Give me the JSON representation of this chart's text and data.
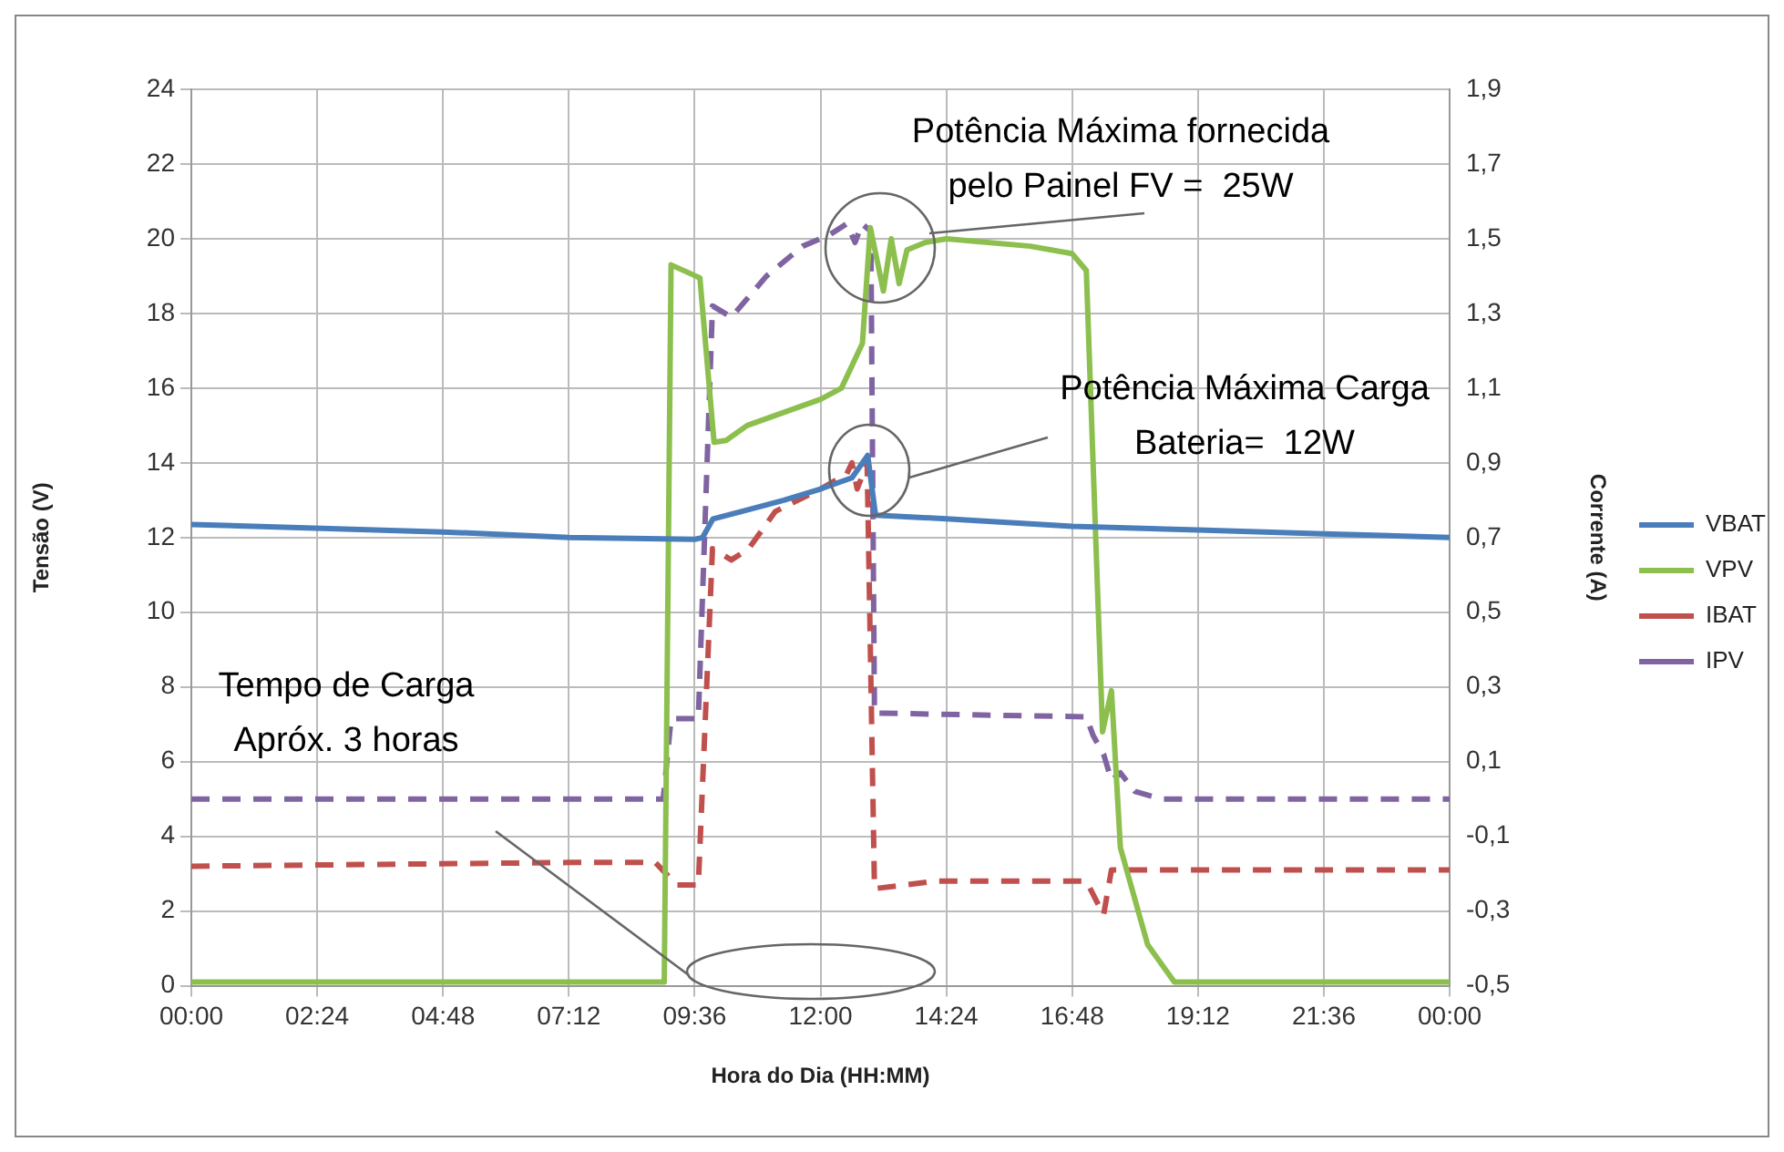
{
  "chart_data": {
    "type": "line",
    "xlabel": "Hora do Dia (HH:MM)",
    "ylabel": "Tensão (V)",
    "y2label": "Corrente (A)",
    "xlim": [
      0,
      24
    ],
    "xticks": [
      {
        "value": 0,
        "label": "00:00"
      },
      {
        "value": 2.4,
        "label": "02:24"
      },
      {
        "value": 4.8,
        "label": "04:48"
      },
      {
        "value": 7.2,
        "label": "07:12"
      },
      {
        "value": 9.6,
        "label": "09:36"
      },
      {
        "value": 12,
        "label": "12:00"
      },
      {
        "value": 14.4,
        "label": "14:24"
      },
      {
        "value": 16.8,
        "label": "16:48"
      },
      {
        "value": 19.2,
        "label": "19:12"
      },
      {
        "value": 21.6,
        "label": "21:36"
      },
      {
        "value": 24,
        "label": "00:00"
      }
    ],
    "ylim": [
      0,
      24
    ],
    "yticks": [
      0,
      2,
      4,
      6,
      8,
      10,
      12,
      14,
      16,
      18,
      20,
      22,
      24
    ],
    "y2lim": [
      -0.5,
      1.9
    ],
    "y2ticks": [
      {
        "value": -0.5,
        "label": "-0,5"
      },
      {
        "value": -0.3,
        "label": "-0,3"
      },
      {
        "value": -0.1,
        "label": "-0,1"
      },
      {
        "value": 0.1,
        "label": "0,1"
      },
      {
        "value": 0.3,
        "label": "0,3"
      },
      {
        "value": 0.5,
        "label": "0,5"
      },
      {
        "value": 0.7,
        "label": "0,7"
      },
      {
        "value": 0.9,
        "label": "0,9"
      },
      {
        "value": 1.1,
        "label": "1,1"
      },
      {
        "value": 1.3,
        "label": "1,3"
      },
      {
        "value": 1.5,
        "label": "1,5"
      },
      {
        "value": 1.7,
        "label": "1,7"
      },
      {
        "value": 1.9,
        "label": "1,9"
      }
    ],
    "grid": true,
    "legend": "right",
    "series": [
      {
        "name": "VBAT",
        "color": "#4a7ebb",
        "line_style": "solid",
        "x": [
          0,
          4.8,
          7.2,
          9.6,
          9.75,
          9.95,
          10.5,
          11.3,
          12,
          12.6,
          12.9,
          13.05,
          14.4,
          16.8,
          19.2,
          21.6,
          24
        ],
        "values": [
          12.35,
          12.15,
          12.0,
          11.95,
          12.0,
          12.5,
          12.7,
          13.0,
          13.3,
          13.6,
          14.2,
          12.6,
          12.5,
          12.3,
          12.2,
          12.1,
          12.0
        ]
      },
      {
        "name": "VPV",
        "color": "#8cbf4e",
        "line_style": "solid",
        "x": [
          0,
          9.02,
          9.15,
          9.7,
          9.97,
          10.2,
          10.6,
          12.0,
          12.4,
          12.8,
          12.95,
          13.2,
          13.35,
          13.5,
          13.65,
          14.0,
          14.4,
          16.0,
          16.8,
          17.07,
          17.38,
          17.55,
          17.72,
          18.24,
          18.75,
          24
        ],
        "values": [
          0.1,
          0.1,
          19.3,
          18.95,
          14.55,
          14.6,
          15.0,
          15.7,
          16.0,
          17.2,
          20.3,
          18.6,
          20.0,
          18.8,
          19.7,
          19.9,
          20.0,
          19.8,
          19.6,
          19.15,
          6.8,
          7.9,
          3.7,
          1.1,
          0.1,
          0.1
        ]
      },
      {
        "name": "IBAT",
        "color": "#c0504d",
        "line_style": "dashed",
        "axis": "y2",
        "x": [
          0,
          7.2,
          8.85,
          9.26,
          9.67,
          9.94,
          10.3,
          10.63,
          11.14,
          12.0,
          12.5,
          12.6,
          12.7,
          12.89,
          13.03,
          14.2,
          17.07,
          17.4,
          17.55,
          24
        ],
        "values": [
          -0.18,
          -0.17,
          -0.17,
          -0.23,
          -0.23,
          0.67,
          0.64,
          0.67,
          0.77,
          0.83,
          0.87,
          0.9,
          0.83,
          0.9,
          -0.24,
          -0.22,
          -0.22,
          -0.31,
          -0.19,
          -0.19
        ]
      },
      {
        "name": "IPV",
        "color": "#8064a2",
        "line_style": "dashed",
        "axis": "y2",
        "x": [
          0,
          9.0,
          9.15,
          9.67,
          9.94,
          10.3,
          10.97,
          11.66,
          12.17,
          12.5,
          12.66,
          12.79,
          12.96,
          13.03,
          17.07,
          17.2,
          17.4,
          17.55,
          17.72,
          18.0,
          18.5,
          24
        ],
        "values": [
          0.0,
          0.0,
          0.215,
          0.215,
          1.32,
          1.29,
          1.4,
          1.48,
          1.51,
          1.54,
          1.49,
          1.54,
          1.52,
          0.23,
          0.22,
          0.17,
          0.12,
          0.05,
          0.07,
          0.02,
          0.0,
          0.0
        ]
      }
    ],
    "annotations": [
      "Potência Máxima fornecida\npelo Painel FV =  25W",
      "Potência Máxima Carga\nBateria=  12W",
      "Tempo de Carga\nApróx. 3 horas"
    ]
  }
}
